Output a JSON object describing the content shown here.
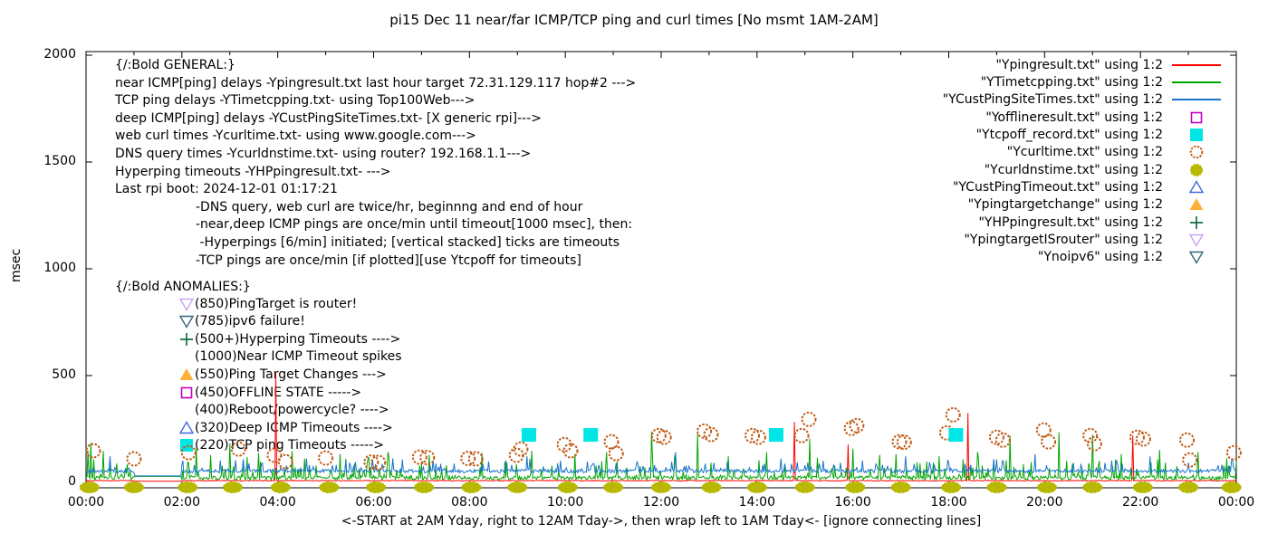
{
  "title": "pi15 Dec 11  near/far ICMP/TCP ping and curl times [No msmt 1AM-2AM]",
  "y_axis": {
    "label": "msec",
    "ticks": [
      0,
      500,
      1000,
      1500,
      2000
    ]
  },
  "x_axis": {
    "tick_labels": [
      "00:00",
      "02:00",
      "04:00",
      "06:00",
      "08:00",
      "10:00",
      "12:00",
      "14:00",
      "16:00",
      "18:00",
      "20:00",
      "22:00",
      "00:00"
    ],
    "caption": "<-START at 2AM Yday, right to 12AM Tday->, then wrap left to 1AM Tday<- [ignore connecting lines]"
  },
  "general": {
    "lines": [
      "{/:Bold GENERAL:}",
      "near ICMP[ping] delays -Ypingresult.txt last hour target 72.31.129.117 hop#2 --->",
      "TCP ping delays -YTimetcpping.txt- using Top100Web--->",
      "deep ICMP[ping] delays -YCustPingSiteTimes.txt- [X generic rpi]--->",
      "web curl times -Ycurltime.txt- using www.google.com--->",
      "DNS query times -Ycurldnstime.txt- using router? 192.168.1.1--->",
      "Hyperping timeouts -YHPpingresult.txt- --->",
      "Last rpi boot: 2024-12-01 01:17:21",
      "                    -DNS query, web curl are twice/hr, beginnng and end of hour",
      "                    -near,deep ICMP pings are once/min until timeout[1000 msec], then:",
      "                     -Hyperpings [6/min] initiated; [vertical stacked] ticks are timeouts",
      "                    -TCP pings are once/min [if plotted][use Ytcpoff for timeouts]"
    ]
  },
  "anomalies": {
    "heading": "{/:Bold ANOMALIES:}",
    "items": [
      {
        "marker": "triangle-down-open",
        "color": "#cba4f2",
        "label": "(850)PingTarget is router!"
      },
      {
        "marker": "triangle-down-open",
        "color": "#30687a",
        "label": "(785)ipv6 failure!"
      },
      {
        "marker": "plus",
        "color": "#156e46",
        "label": "(500+)Hyperping Timeouts ---->"
      },
      {
        "marker": null,
        "color": null,
        "label": "(1000)Near ICMP Timeout spikes"
      },
      {
        "marker": "triangle-up-filled",
        "color": "#ffb03a",
        "label": "(550)Ping Target Changes --->"
      },
      {
        "marker": "square-open",
        "color": "#c000c0",
        "label": "(450)OFFLINE STATE ----->"
      },
      {
        "marker": null,
        "color": null,
        "label": "(400)Reboot/powercycle? ---->"
      },
      {
        "marker": "triangle-up-open",
        "color": "#4169e1",
        "label": "(320)Deep ICMP Timeouts ---->"
      },
      {
        "marker": "square-filled",
        "color": "#00e5e5",
        "label": "(220)TCP ping Timeouts ----->"
      }
    ]
  },
  "legend": [
    {
      "label": "\"Ypingresult.txt\" using 1:2",
      "marker": "line",
      "color": "#ff0000"
    },
    {
      "label": "\"YTimetcpping.txt\" using 1:2",
      "marker": "line",
      "color": "#00a400"
    },
    {
      "label": "\"YCustPingSiteTimes.txt\" using 1:2",
      "marker": "line",
      "color": "#1874cd"
    },
    {
      "label": "\"Yofflineresult.txt\" using 1:2",
      "marker": "square-open",
      "color": "#c000c0"
    },
    {
      "label": "\"Ytcpoff_record.txt\" using 1:2",
      "marker": "square-filled",
      "color": "#00e5e5"
    },
    {
      "label": "\"Ycurltime.txt\" using 1:2",
      "marker": "circle-open",
      "color": "#c05a14"
    },
    {
      "label": "\"Ycurldnstime.txt\" using 1:2",
      "marker": "circle-filled",
      "color": "#b8b800"
    },
    {
      "label": "\"YCustPingTimeout.txt\" using 1:2",
      "marker": "triangle-up-open",
      "color": "#4169e1"
    },
    {
      "label": "\"Ypingtargetchange\" using 1:2",
      "marker": "triangle-up-filled",
      "color": "#ffb03a"
    },
    {
      "label": "\"YHPpingresult.txt\" using 1:2",
      "marker": "plus",
      "color": "#156e46"
    },
    {
      "label": "\"YpingtargetISrouter\" using 1:2",
      "marker": "triangle-down-open",
      "color": "#cba4f2"
    },
    {
      "label": "\"Ynoipv6\" using 1:2",
      "marker": "triangle-down-open",
      "color": "#30687a"
    }
  ],
  "chart_data": {
    "type": "line",
    "title": "pi15 Dec 11  near/far ICMP/TCP ping and curl times [No msmt 1AM-2AM]",
    "ylabel": "msec",
    "ylim": [
      0,
      2000
    ],
    "y_ticks": [
      0,
      500,
      1000,
      1500,
      2000
    ],
    "x_unit": "hour of day",
    "xlim_hours": [
      0,
      24
    ],
    "x_tick_hours": [
      0,
      2,
      4,
      6,
      8,
      10,
      12,
      14,
      16,
      18,
      20,
      22,
      24
    ],
    "grid": false,
    "legend_position": "top-right-inside",
    "no_measurement_gap_hours": [
      1,
      2
    ],
    "line_series": [
      {
        "name": "Ypingresult.txt (near ICMP ping delay)",
        "color": "#ff0000",
        "base_msec": 6,
        "jitter_msec": 4,
        "spike_noise_msec": 0,
        "gap_msec": 5,
        "spikes": [
          [
            3.95,
            515
          ],
          [
            14.77,
            283
          ],
          [
            15.9,
            177
          ],
          [
            18.39,
            325
          ],
          [
            21.83,
            219
          ]
        ]
      },
      {
        "name": "YTimetcpping.txt (TCP ping delay)",
        "color": "#00a400",
        "base_msec": 12,
        "jitter_msec": 18,
        "spike_noise_msec": 95,
        "gap_msec": 28,
        "spikes": [
          [
            0.04,
            150
          ],
          [
            0.1,
            185
          ],
          [
            0.35,
            148
          ],
          [
            2.3,
            158
          ],
          [
            2.6,
            128
          ],
          [
            3.0,
            182
          ],
          [
            3.35,
            118
          ],
          [
            3.6,
            138
          ],
          [
            4.3,
            148
          ],
          [
            4.55,
            112
          ],
          [
            5.3,
            132
          ],
          [
            5.9,
            118
          ],
          [
            6.3,
            142
          ],
          [
            7.15,
            128
          ],
          [
            8.25,
            138
          ],
          [
            9.3,
            148
          ],
          [
            10.2,
            132
          ],
          [
            10.85,
            142
          ],
          [
            11.8,
            238
          ],
          [
            12.3,
            128
          ],
          [
            12.75,
            228
          ],
          [
            13.4,
            122
          ],
          [
            14.2,
            142
          ],
          [
            15.1,
            205
          ],
          [
            16.0,
            158
          ],
          [
            16.55,
            128
          ],
          [
            16.9,
            132
          ],
          [
            17.8,
            122
          ],
          [
            18.6,
            142
          ],
          [
            19.28,
            219
          ],
          [
            20.3,
            234
          ],
          [
            21.0,
            224
          ],
          [
            21.6,
            132
          ],
          [
            22.4,
            152
          ],
          [
            23.2,
            142
          ],
          [
            23.8,
            112
          ]
        ]
      },
      {
        "name": "YCustPingSiteTimes.txt (deep ICMP ping delay)",
        "color": "#1874cd",
        "base_msec": 45,
        "jitter_msec": 16,
        "spike_noise_msec": 55,
        "gap_msec": 30,
        "spikes": [
          [
            0.5,
            122
          ],
          [
            2.8,
            102
          ],
          [
            3.4,
            88
          ],
          [
            4.6,
            112
          ],
          [
            5.5,
            92
          ],
          [
            6.6,
            108
          ],
          [
            7.3,
            88
          ],
          [
            8.4,
            98
          ],
          [
            9.2,
            122
          ],
          [
            9.9,
            102
          ],
          [
            10.6,
            88
          ],
          [
            11.5,
            98
          ],
          [
            12.3,
            142
          ],
          [
            13.1,
            92
          ],
          [
            14.5,
            112
          ],
          [
            15.3,
            88
          ],
          [
            16.2,
            102
          ],
          [
            17.1,
            122
          ],
          [
            18.0,
            92
          ],
          [
            19.0,
            108
          ],
          [
            19.8,
            132
          ],
          [
            20.6,
            92
          ],
          [
            21.4,
            102
          ],
          [
            22.2,
            122
          ],
          [
            23.0,
            92
          ],
          [
            23.7,
            82
          ]
        ]
      }
    ],
    "point_series": [
      {
        "name": "Ycurltime.txt (web curl times)",
        "style": "circle-open",
        "color": "#c05a14",
        "points": [
          [
            0.15,
            148
          ],
          [
            1.0,
            110
          ],
          [
            2.14,
            139
          ],
          [
            3.18,
            156
          ],
          [
            3.93,
            127
          ],
          [
            4.16,
            97
          ],
          [
            5.0,
            114
          ],
          [
            5.95,
            95
          ],
          [
            6.1,
            93
          ],
          [
            6.96,
            118
          ],
          [
            7.12,
            116
          ],
          [
            7.97,
            112
          ],
          [
            8.13,
            110
          ],
          [
            8.98,
            127
          ],
          [
            9.07,
            156
          ],
          [
            9.98,
            177
          ],
          [
            10.11,
            148
          ],
          [
            10.96,
            190
          ],
          [
            11.06,
            135
          ],
          [
            11.95,
            219
          ],
          [
            12.06,
            211
          ],
          [
            12.9,
            240
          ],
          [
            13.04,
            224
          ],
          [
            13.9,
            219
          ],
          [
            14.03,
            211
          ],
          [
            14.93,
            219
          ],
          [
            15.08,
            295
          ],
          [
            15.97,
            253
          ],
          [
            16.08,
            266
          ],
          [
            16.97,
            190
          ],
          [
            17.07,
            188
          ],
          [
            17.96,
            232
          ],
          [
            18.09,
            316
          ],
          [
            19.0,
            211
          ],
          [
            19.13,
            198
          ],
          [
            19.98,
            245
          ],
          [
            20.08,
            190
          ],
          [
            20.95,
            219
          ],
          [
            21.04,
            181
          ],
          [
            21.93,
            211
          ],
          [
            22.06,
            203
          ],
          [
            22.97,
            198
          ],
          [
            23.03,
            105
          ],
          [
            23.95,
            139
          ]
        ]
      },
      {
        "name": "Ycurldnstime.txt (DNS query times)",
        "style": "dot-large",
        "color": "#b8b800",
        "points": [
          [
            0.07,
            2
          ],
          [
            1.0,
            2
          ],
          [
            2.12,
            2
          ],
          [
            3.06,
            2
          ],
          [
            4.06,
            2
          ],
          [
            5.07,
            2
          ],
          [
            6.05,
            2
          ],
          [
            7.05,
            2
          ],
          [
            8.04,
            2
          ],
          [
            9.0,
            2
          ],
          [
            10.05,
            2
          ],
          [
            11.0,
            2
          ],
          [
            12.0,
            2
          ],
          [
            13.05,
            2
          ],
          [
            14.0,
            2
          ],
          [
            15.0,
            2
          ],
          [
            16.05,
            2
          ],
          [
            17.0,
            2
          ],
          [
            18.05,
            2
          ],
          [
            19.0,
            2
          ],
          [
            20.05,
            2
          ],
          [
            21.0,
            2
          ],
          [
            22.05,
            2
          ],
          [
            23.0,
            2
          ],
          [
            23.9,
            2
          ]
        ]
      },
      {
        "name": "Ytcpoff_record.txt (TCP ping timeouts)",
        "style": "square-filled",
        "color": "#00e5e5",
        "points": [
          [
            9.24,
            220
          ],
          [
            10.53,
            220
          ],
          [
            14.4,
            220
          ],
          [
            18.15,
            220
          ]
        ]
      },
      {
        "name": "Yofflineresult.txt (offline state)",
        "style": "square-open",
        "color": "#c000c0",
        "points": []
      },
      {
        "name": "YCustPingTimeout.txt (deep ICMP timeouts)",
        "style": "triangle-up-open",
        "color": "#4169e1",
        "points": []
      },
      {
        "name": "Ypingtargetchange (ping target changes)",
        "style": "triangle-up-filled",
        "color": "#ffb03a",
        "points": []
      },
      {
        "name": "YHPpingresult.txt (hyperping timeouts)",
        "style": "plus",
        "color": "#156e46",
        "points": []
      },
      {
        "name": "YpingtargetISrouter",
        "style": "triangle-down-open",
        "color": "#cba4f2",
        "points": []
      },
      {
        "name": "Ynoipv6 (ipv6 failure)",
        "style": "triangle-down-open",
        "color": "#30687a",
        "points": []
      }
    ]
  }
}
